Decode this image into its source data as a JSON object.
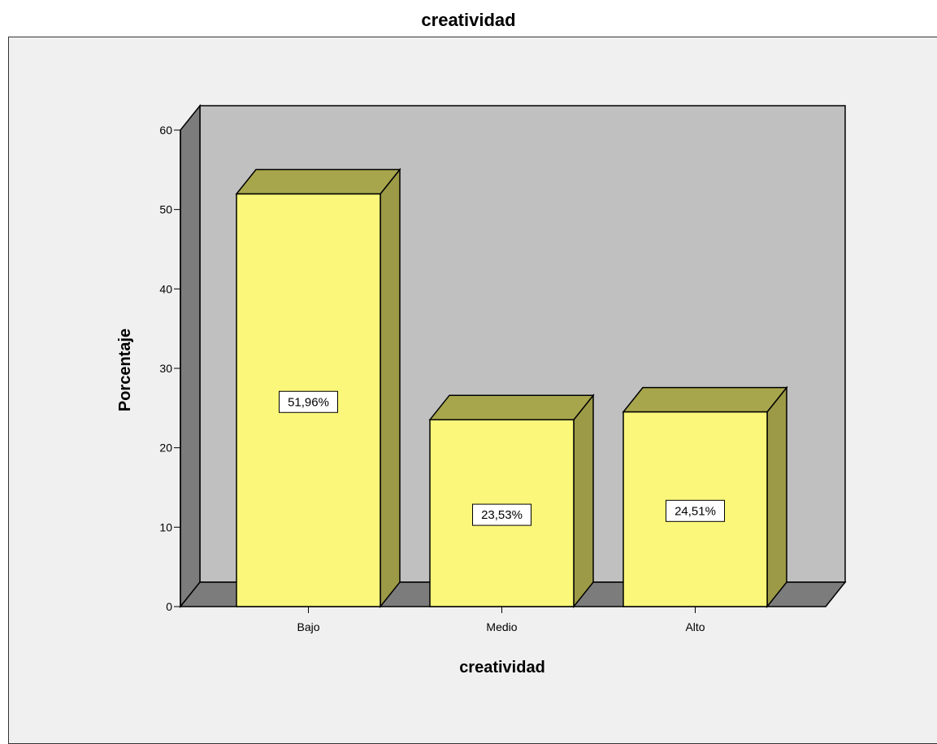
{
  "chart_data": {
    "type": "bar",
    "title": "creatividad",
    "xlabel": "creatividad",
    "ylabel": "Porcentaje",
    "categories": [
      "Bajo",
      "Medio",
      "Alto"
    ],
    "values": [
      51.96,
      23.53,
      24.51
    ],
    "value_labels": [
      "51,96%",
      "23,53%",
      "24,51%"
    ],
    "ylim": [
      0,
      60
    ],
    "yticks": [
      0,
      10,
      20,
      30,
      40,
      50,
      60
    ],
    "style": "3d",
    "grid": false,
    "colors": {
      "bar_front": "#fbf77a",
      "bar_side": "#9c9a46",
      "bar_top": "#a8a64c",
      "wall_back": "#c0c0c0",
      "wall_side": "#7c7c7c",
      "floor": "#7c7c7c",
      "background": "#f0f0f0"
    }
  }
}
